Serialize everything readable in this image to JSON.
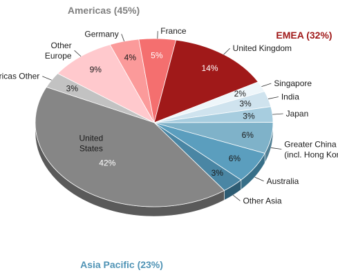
{
  "chart_data": {
    "type": "pie",
    "title": "",
    "region_titles": [
      {
        "id": "americas",
        "label": "Americas (45%)",
        "color": "#7f7f7f"
      },
      {
        "id": "emea",
        "label": "EMEA (32%)",
        "color": "#a01919"
      },
      {
        "id": "apac",
        "label": "Asia Pacific (23%)",
        "color": "#4f93b5"
      }
    ],
    "slices": [
      {
        "label": "Americas Other",
        "value": 3,
        "value_label": "3%",
        "region": "americas",
        "color": "#c2c2c2",
        "dark": "#8f8f8f"
      },
      {
        "label": "Other\nEurope",
        "value": 9,
        "value_label": "9%",
        "region": "emea",
        "color": "#ffc9cd",
        "dark": "#d99aa0"
      },
      {
        "label": "Germany",
        "value": 4,
        "value_label": "4%",
        "region": "emea",
        "color": "#fb9a9a",
        "dark": "#cf6e6e"
      },
      {
        "label": "France",
        "value": 5,
        "value_label": "5%",
        "region": "emea",
        "color": "#f46f6f",
        "dark": "#c04848"
      },
      {
        "label": "United Kingdom",
        "value": 14,
        "value_label": "14%",
        "region": "emea",
        "color": "#a01919",
        "dark": "#6b0d0d"
      },
      {
        "label": "Singapore",
        "value": 2,
        "value_label": "2%",
        "region": "apac",
        "color": "#eef6fa",
        "dark": "#b7c9d3"
      },
      {
        "label": "India",
        "value": 3,
        "value_label": "3%",
        "region": "apac",
        "color": "#cfe3ee",
        "dark": "#93aebd"
      },
      {
        "label": "Japan",
        "value": 3,
        "value_label": "3%",
        "region": "apac",
        "color": "#a7cddf",
        "dark": "#6e98ab"
      },
      {
        "label": "Greater China\n(incl. Hong Kong)",
        "value": 6,
        "value_label": "6%",
        "region": "apac",
        "color": "#7fb2c9",
        "dark": "#517f94"
      },
      {
        "label": "Australia",
        "value": 6,
        "value_label": "6%",
        "region": "apac",
        "color": "#5b9ebe",
        "dark": "#386f88"
      },
      {
        "label": "Other Asia",
        "value": 3,
        "value_label": "3%",
        "region": "apac",
        "color": "#4a86a4",
        "dark": "#2d5c73"
      },
      {
        "label": "United\nStates",
        "value": 42,
        "value_label": "42%",
        "region": "americas",
        "color": "#868686",
        "dark": "#5a5a5a"
      }
    ]
  }
}
